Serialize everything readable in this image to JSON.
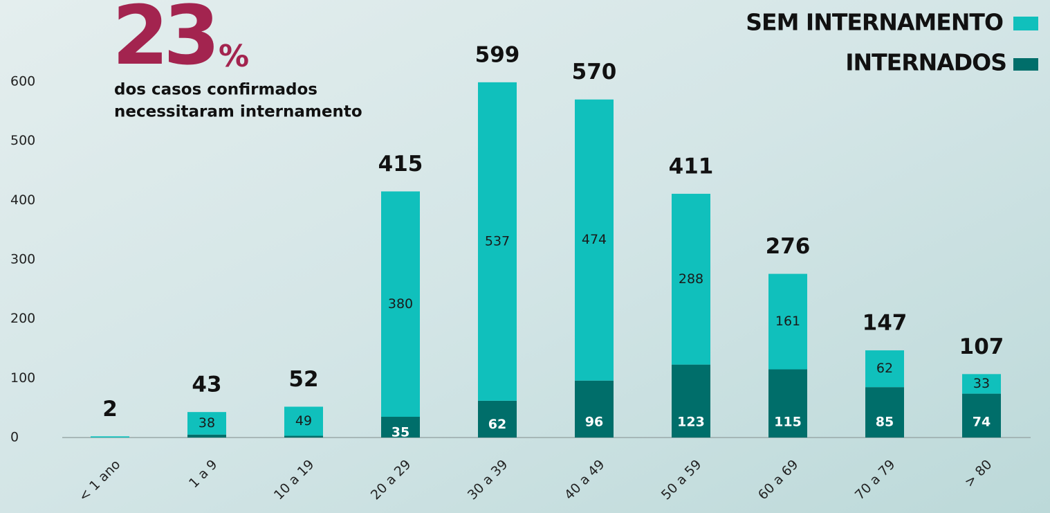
{
  "chart_data": {
    "type": "stacked_bar",
    "headline_number": "23",
    "headline_unit": "%",
    "subtitle_lines": [
      "dos casos confirmados",
      "necessitaram internamento"
    ],
    "categories": [
      "< 1 ano",
      "1 a 9",
      "10 a 19",
      "20 a 29",
      "30 a 39",
      "40 a 49",
      "50 a 59",
      "60 a 69",
      "70 a 79",
      "> 80"
    ],
    "series": [
      {
        "name": "INTERNADOS",
        "color": "#006e6a",
        "values": [
          0,
          5,
          3,
          35,
          62,
          96,
          123,
          115,
          85,
          74
        ],
        "value_labels": [
          null,
          null,
          null,
          "35",
          "62",
          "96",
          "123",
          "115",
          "85",
          "74"
        ]
      },
      {
        "name": "SEM INTERNAMENTO",
        "color": "#10c0bc",
        "values": [
          2,
          38,
          49,
          380,
          537,
          474,
          288,
          161,
          62,
          33
        ],
        "value_labels": [
          null,
          "38",
          "49",
          "380",
          "537",
          "474",
          "288",
          "161",
          "62",
          "33"
        ]
      }
    ],
    "totals": [
      "2",
      "43",
      "52",
      "415",
      "599",
      "570",
      "411",
      "276",
      "147",
      "107"
    ],
    "ylim": [
      0,
      600
    ],
    "yticks": [
      0,
      100,
      200,
      300,
      400,
      500,
      600
    ],
    "grid": false
  }
}
